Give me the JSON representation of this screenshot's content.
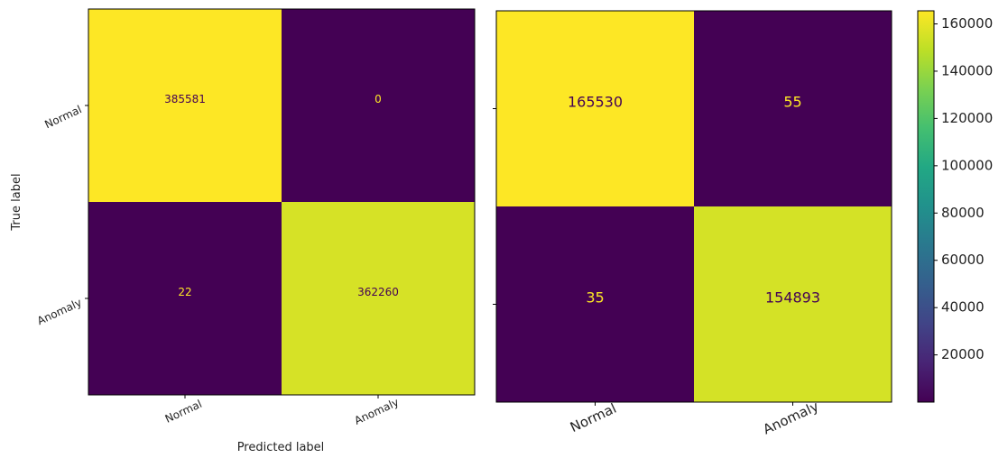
{
  "chart_data": [
    {
      "type": "heatmap",
      "subtype": "confusion-matrix",
      "xlabel": "Predicted label",
      "ylabel": "True label",
      "x_categories": [
        "Normal",
        "Anomaly"
      ],
      "y_categories": [
        "Normal",
        "Anomaly"
      ],
      "values": [
        [
          385581,
          0
        ],
        [
          22,
          362260
        ]
      ],
      "colormap": "viridis",
      "value_range": [
        0,
        385581
      ],
      "ytick_labels_shown": true,
      "grid": false
    },
    {
      "type": "heatmap",
      "subtype": "confusion-matrix",
      "xlabel": "",
      "ylabel": "",
      "x_categories": [
        "Normal",
        "Anomaly"
      ],
      "y_categories": [
        "Normal",
        "Anomaly"
      ],
      "values": [
        [
          165530,
          55
        ],
        [
          35,
          154893
        ]
      ],
      "colormap": "viridis",
      "value_range": [
        35,
        165530
      ],
      "ytick_labels_shown": false,
      "grid": false,
      "colorbar": {
        "position": "right",
        "ticks": [
          20000,
          40000,
          60000,
          80000,
          100000,
          120000,
          140000,
          160000
        ],
        "range": [
          35,
          165530
        ]
      }
    }
  ]
}
